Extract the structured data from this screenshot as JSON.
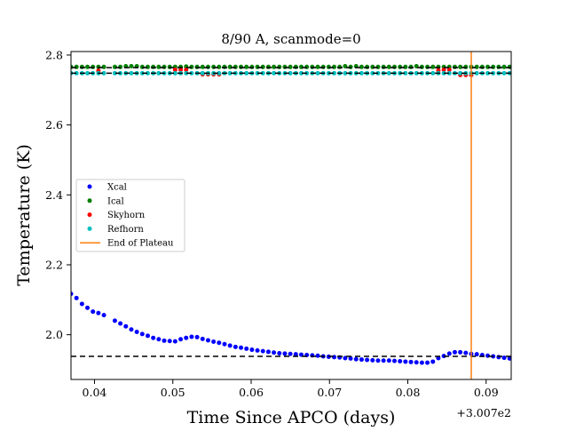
{
  "chart_data": {
    "type": "scatter",
    "title": "8/90 A, scanmode=0",
    "xlabel": "Time Since APCO (days)",
    "ylabel": "Temperature (K)",
    "x_offset_label": "+3.007e2",
    "xlim": [
      0.037,
      0.0932
    ],
    "ylim": [
      1.872,
      2.81
    ],
    "x_ticks": [
      0.04,
      0.05,
      0.06,
      0.07,
      0.08,
      0.09
    ],
    "x_tick_labels": [
      "0.04",
      "0.05",
      "0.06",
      "0.07",
      "0.08",
      "0.09"
    ],
    "y_ticks": [
      2.0,
      2.2,
      2.4,
      2.6,
      2.8
    ],
    "y_tick_labels": [
      "2.0",
      "2.2",
      "2.4",
      "2.6",
      "2.8"
    ],
    "legend_position": "center-left",
    "grid": false,
    "series": [
      {
        "name": "Xcal",
        "color": "#0000ff",
        "points": [
          [
            0.037,
            2.117
          ],
          [
            0.0377,
            2.105
          ],
          [
            0.0384,
            2.088
          ],
          [
            0.0391,
            2.077
          ],
          [
            0.0398,
            2.066
          ],
          [
            0.0405,
            2.062
          ],
          [
            0.0412,
            2.056
          ],
          [
            0.0426,
            2.04
          ],
          [
            0.0433,
            2.032
          ],
          [
            0.044,
            2.024
          ],
          [
            0.0447,
            2.015
          ],
          [
            0.0454,
            2.008
          ],
          [
            0.0461,
            2.002
          ],
          [
            0.0468,
            1.997
          ],
          [
            0.0475,
            1.991
          ],
          [
            0.0482,
            1.987
          ],
          [
            0.0489,
            1.983
          ],
          [
            0.0496,
            1.982
          ],
          [
            0.0503,
            1.981
          ],
          [
            0.051,
            1.987
          ],
          [
            0.0517,
            1.991
          ],
          [
            0.0524,
            1.994
          ],
          [
            0.0531,
            1.993
          ],
          [
            0.0538,
            1.988
          ],
          [
            0.0545,
            1.984
          ],
          [
            0.0552,
            1.98
          ],
          [
            0.0559,
            1.977
          ],
          [
            0.0566,
            1.973
          ],
          [
            0.0573,
            1.969
          ],
          [
            0.058,
            1.965
          ],
          [
            0.0587,
            1.963
          ],
          [
            0.0594,
            1.96
          ],
          [
            0.0601,
            1.957
          ],
          [
            0.0608,
            1.955
          ],
          [
            0.0615,
            1.953
          ],
          [
            0.0622,
            1.951
          ],
          [
            0.0629,
            1.949
          ],
          [
            0.0636,
            1.947
          ],
          [
            0.0643,
            1.946
          ],
          [
            0.065,
            1.945
          ],
          [
            0.0657,
            1.944
          ],
          [
            0.0664,
            1.943
          ],
          [
            0.0671,
            1.942
          ],
          [
            0.0678,
            1.941
          ],
          [
            0.0685,
            1.94
          ],
          [
            0.0692,
            1.938
          ],
          [
            0.0699,
            1.937
          ],
          [
            0.0706,
            1.936
          ],
          [
            0.0713,
            1.935
          ],
          [
            0.072,
            1.933
          ],
          [
            0.0727,
            1.932
          ],
          [
            0.0734,
            1.93
          ],
          [
            0.0741,
            1.929
          ],
          [
            0.0748,
            1.928
          ],
          [
            0.0755,
            1.927
          ],
          [
            0.0762,
            1.926
          ],
          [
            0.0769,
            1.926
          ],
          [
            0.0776,
            1.926
          ],
          [
            0.0783,
            1.925
          ],
          [
            0.079,
            1.924
          ],
          [
            0.0797,
            1.923
          ],
          [
            0.0804,
            1.922
          ],
          [
            0.0811,
            1.921
          ],
          [
            0.0818,
            1.92
          ],
          [
            0.0825,
            1.92
          ],
          [
            0.0832,
            1.923
          ],
          [
            0.0839,
            1.933
          ],
          [
            0.0846,
            1.939
          ],
          [
            0.0853,
            1.946
          ],
          [
            0.086,
            1.95
          ],
          [
            0.0867,
            1.95
          ],
          [
            0.0874,
            1.948
          ],
          [
            0.0881,
            1.945
          ],
          [
            0.0888,
            1.944
          ],
          [
            0.0895,
            1.942
          ],
          [
            0.0902,
            1.94
          ],
          [
            0.0909,
            1.938
          ],
          [
            0.0916,
            1.936
          ],
          [
            0.0923,
            1.934
          ],
          [
            0.093,
            1.932
          ]
        ]
      },
      {
        "name": "Ical",
        "color": "#008000",
        "x_start": 0.037,
        "x_end": 0.093,
        "x_step": 0.0007,
        "y": 2.766,
        "gap_x": [
          0.0412,
          0.0426
        ],
        "jitter_y": [
          [
            0.044,
            2.768
          ],
          [
            0.0447,
            2.768
          ],
          [
            0.0454,
            2.768
          ],
          [
            0.0517,
            2.767
          ],
          [
            0.072,
            2.768
          ],
          [
            0.0734,
            2.768
          ],
          [
            0.0811,
            2.768
          ]
        ]
      },
      {
        "name": "Skyhorn",
        "color": "#ff0000",
        "points": [
          [
            0.0405,
            2.755
          ],
          [
            0.0503,
            2.758
          ],
          [
            0.051,
            2.758
          ],
          [
            0.0517,
            2.758
          ],
          [
            0.0538,
            2.745
          ],
          [
            0.0545,
            2.745
          ],
          [
            0.0552,
            2.745
          ],
          [
            0.0559,
            2.745
          ],
          [
            0.0839,
            2.756
          ],
          [
            0.0846,
            2.758
          ],
          [
            0.0853,
            2.758
          ],
          [
            0.0867,
            2.743
          ],
          [
            0.0874,
            2.743
          ],
          [
            0.0881,
            2.743
          ]
        ]
      },
      {
        "name": "Refhorn",
        "color": "#00bfbf",
        "x_start": 0.037,
        "x_end": 0.093,
        "x_step": 0.0007,
        "y": 2.748,
        "gap_x": [
          0.0412,
          0.0426
        ]
      }
    ],
    "reference_lines": [
      {
        "type": "hline",
        "y": 1.938,
        "style": "dashed",
        "color": "#000000",
        "x_range": [
          0.037,
          0.0932
        ]
      },
      {
        "type": "hline",
        "y": 2.764,
        "style": "dashed",
        "color": "#000000",
        "x_range": [
          0.037,
          0.0932
        ]
      },
      {
        "type": "hline",
        "y": 2.748,
        "style": "dashed",
        "color": "#000000",
        "x_range": [
          0.037,
          0.0932
        ]
      },
      {
        "type": "vline",
        "x": 0.0881,
        "color": "#ff7f0e",
        "name": "End of Plateau"
      }
    ],
    "legend": [
      {
        "label": "Xcal",
        "kind": "marker",
        "color": "#0000ff"
      },
      {
        "label": "Ical",
        "kind": "marker",
        "color": "#008000"
      },
      {
        "label": "Skyhorn",
        "kind": "marker",
        "color": "#ff0000"
      },
      {
        "label": "Refhorn",
        "kind": "marker",
        "color": "#00bfbf"
      },
      {
        "label": "End of Plateau",
        "kind": "line",
        "color": "#ff7f0e"
      }
    ]
  }
}
